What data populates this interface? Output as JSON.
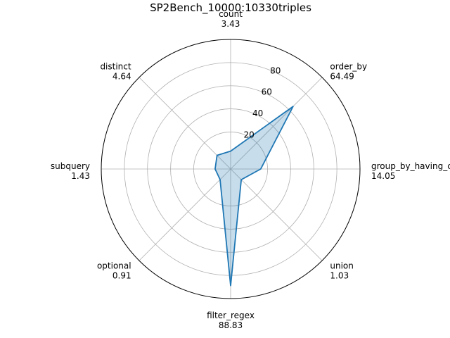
{
  "chart_data": {
    "type": "radar",
    "title": "SP2Bench_10000:10330triples",
    "categories": [
      "count",
      "order_by",
      "group_by_having_count_distinct",
      "union",
      "filter_regex",
      "optional",
      "subquery",
      "distinct"
    ],
    "values": [
      3.43,
      64.49,
      14.05,
      1.03,
      88.83,
      0.91,
      1.43,
      4.64
    ],
    "value_labels": [
      "3.43",
      "64.49",
      "14.05",
      "1.03",
      "88.83",
      "0.91",
      "1.43",
      "4.64"
    ],
    "radial_ticks": [
      "20",
      "40",
      "60",
      "80"
    ],
    "rlim": [
      -12,
      100
    ],
    "grid": true,
    "color": "#1f77b4"
  }
}
